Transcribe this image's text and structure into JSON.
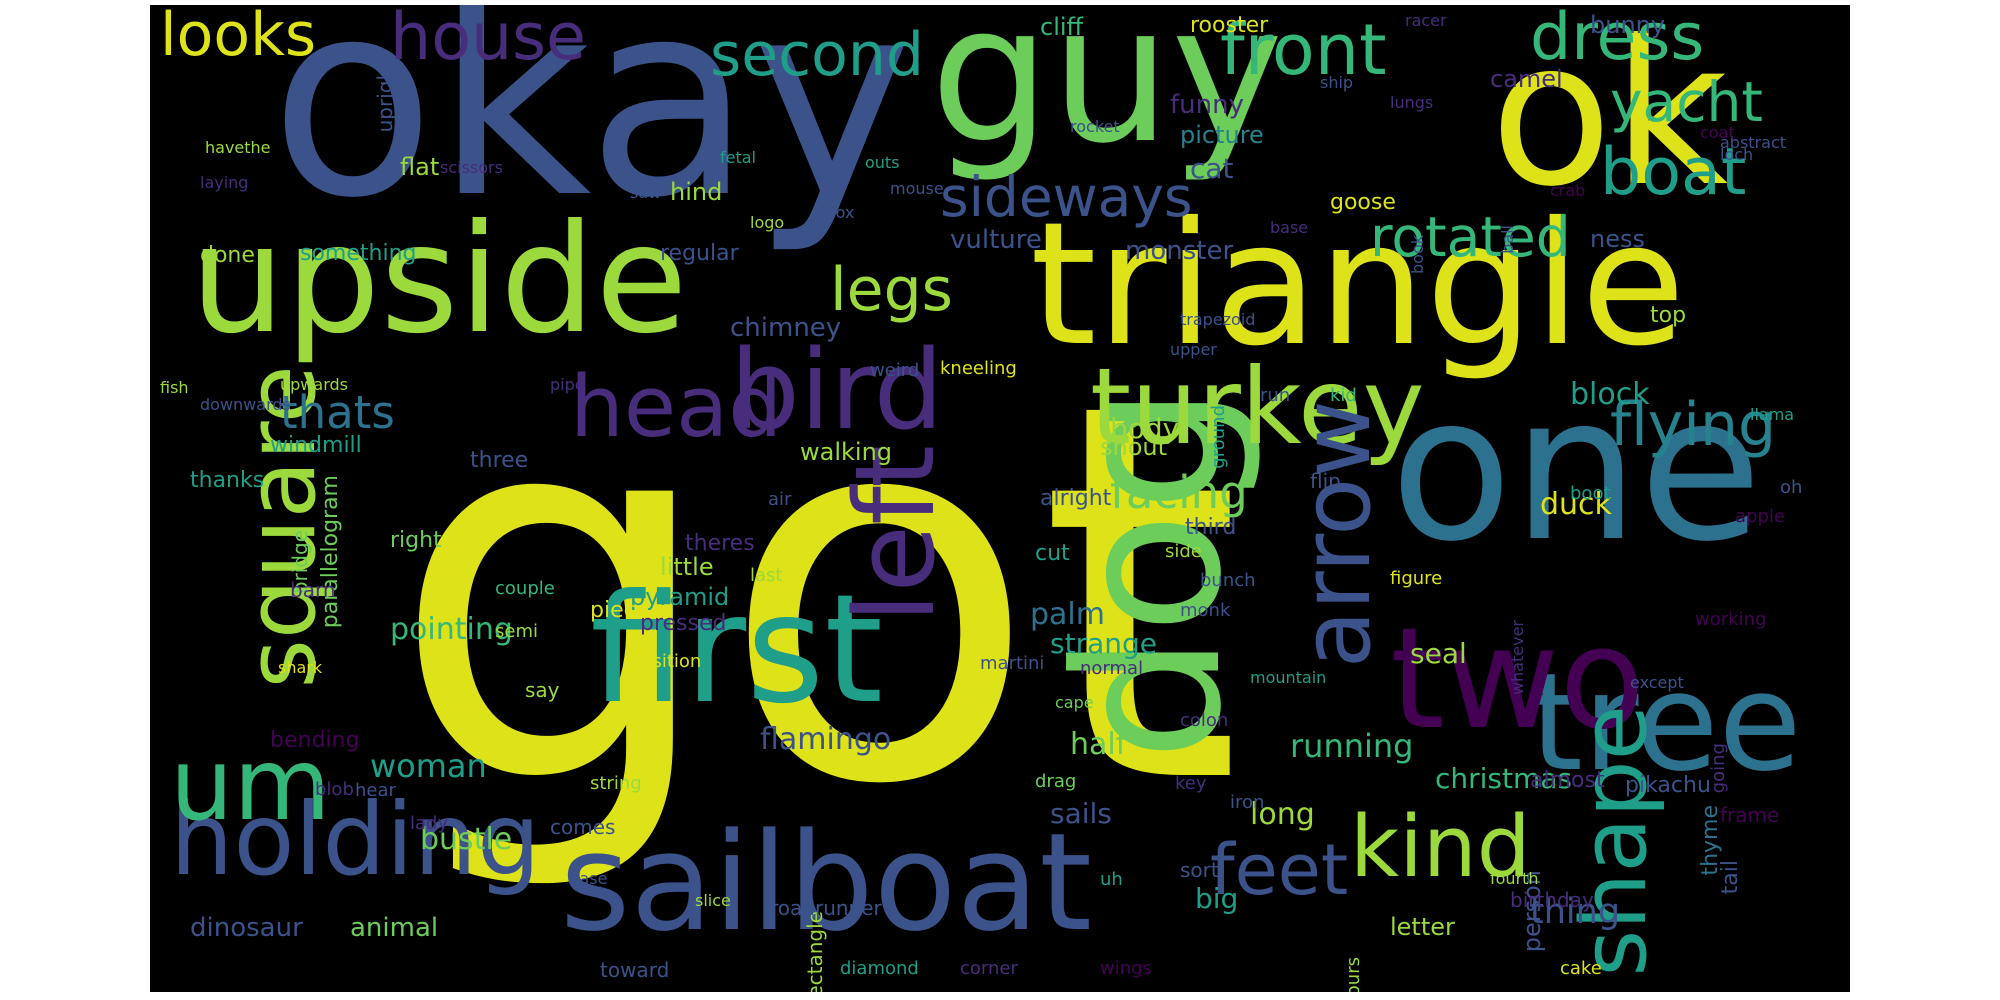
{
  "palette": {
    "yellow": "#dde318",
    "lime": "#9bd93c",
    "green": "#6ccd5a",
    "teal": "#1f9e89",
    "blue": "#2c728e",
    "slate": "#3b528b",
    "indigo": "#472d7b",
    "purple": "#440154",
    "cyan": "#26828e",
    "aqua": "#35b779"
  },
  "words": [
    {
      "text": "got",
      "color": "yellow"
    },
    {
      "text": "okay",
      "color": "slate"
    },
    {
      "text": "ok",
      "color": "yellow"
    },
    {
      "text": "guy",
      "color": "green"
    },
    {
      "text": "triangle",
      "color": "yellow"
    },
    {
      "text": "upside",
      "color": "lime"
    },
    {
      "text": "one",
      "color": "blue"
    },
    {
      "text": "first",
      "color": "teal"
    },
    {
      "text": "sailboat",
      "color": "slate"
    },
    {
      "text": "tree",
      "color": "blue"
    },
    {
      "text": "dog",
      "color": "green"
    },
    {
      "text": "two",
      "color": "purple"
    },
    {
      "text": "turkey",
      "color": "lime"
    },
    {
      "text": "holding",
      "color": "slate"
    },
    {
      "text": "bird",
      "color": "indigo"
    },
    {
      "text": "head",
      "color": "indigo"
    },
    {
      "text": "um",
      "color": "aqua"
    },
    {
      "text": "square",
      "color": "lime"
    },
    {
      "text": "left",
      "color": "indigo"
    },
    {
      "text": "arrow",
      "color": "slate"
    },
    {
      "text": "shape",
      "color": "teal"
    },
    {
      "text": "kind",
      "color": "lime"
    },
    {
      "text": "feet",
      "color": "slate"
    },
    {
      "text": "looks",
      "color": "yellow"
    },
    {
      "text": "house",
      "color": "indigo"
    },
    {
      "text": "second",
      "color": "teal"
    },
    {
      "text": "front",
      "color": "aqua"
    },
    {
      "text": "dress",
      "color": "aqua"
    },
    {
      "text": "yacht",
      "color": "aqua"
    },
    {
      "text": "boat",
      "color": "teal"
    },
    {
      "text": "sideways",
      "color": "slate"
    },
    {
      "text": "rotated",
      "color": "aqua"
    },
    {
      "text": "legs",
      "color": "lime"
    },
    {
      "text": "flying",
      "color": "cyan"
    },
    {
      "text": "facing",
      "color": "green"
    },
    {
      "text": "thats",
      "color": "blue"
    },
    {
      "text": "woman",
      "color": "teal"
    },
    {
      "text": "flamingo",
      "color": "slate"
    },
    {
      "text": "running",
      "color": "aqua"
    },
    {
      "text": "christmas",
      "color": "aqua"
    },
    {
      "text": "thing",
      "color": "slate"
    },
    {
      "text": "duck",
      "color": "yellow"
    },
    {
      "text": "block",
      "color": "teal"
    },
    {
      "text": "palm",
      "color": "blue"
    },
    {
      "text": "half",
      "color": "green"
    },
    {
      "text": "bustle",
      "color": "green"
    },
    {
      "text": "long",
      "color": "lime"
    },
    {
      "text": "big",
      "color": "teal"
    },
    {
      "text": "sails",
      "color": "slate"
    },
    {
      "text": "dinosaur",
      "color": "slate"
    },
    {
      "text": "animal",
      "color": "green"
    },
    {
      "text": "letter",
      "color": "lime"
    },
    {
      "text": "person",
      "color": "slate"
    },
    {
      "text": "strange",
      "color": "teal"
    },
    {
      "text": "pointing",
      "color": "aqua"
    },
    {
      "text": "windmill",
      "color": "teal"
    },
    {
      "text": "chimney",
      "color": "slate"
    },
    {
      "text": "walking",
      "color": "lime"
    },
    {
      "text": "body",
      "color": "lime"
    },
    {
      "text": "snout",
      "color": "lime"
    },
    {
      "text": "seal",
      "color": "lime"
    },
    {
      "text": "monster",
      "color": "slate"
    },
    {
      "text": "vulture",
      "color": "slate"
    },
    {
      "text": "cat",
      "color": "slate"
    },
    {
      "text": "funny",
      "color": "indigo"
    },
    {
      "text": "picture",
      "color": "cyan"
    },
    {
      "text": "bunny",
      "color": "slate"
    },
    {
      "text": "cliff",
      "color": "aqua"
    },
    {
      "text": "rooster",
      "color": "yellow"
    },
    {
      "text": "camel",
      "color": "indigo"
    },
    {
      "text": "goose",
      "color": "yellow"
    },
    {
      "text": "ness",
      "color": "slate"
    },
    {
      "text": "top",
      "color": "lime"
    },
    {
      "text": "hind",
      "color": "lime"
    },
    {
      "text": "flat",
      "color": "lime"
    },
    {
      "text": "something",
      "color": "teal"
    },
    {
      "text": "done",
      "color": "lime"
    },
    {
      "text": "regular",
      "color": "slate"
    },
    {
      "text": "upright",
      "color": "slate"
    },
    {
      "text": "thanks",
      "color": "teal"
    },
    {
      "text": "three",
      "color": "slate"
    },
    {
      "text": "right",
      "color": "green"
    },
    {
      "text": "theres",
      "color": "indigo"
    },
    {
      "text": "little",
      "color": "lime"
    },
    {
      "text": "pyramid",
      "color": "teal"
    },
    {
      "text": "piece",
      "color": "yellow"
    },
    {
      "text": "pressed",
      "color": "indigo"
    },
    {
      "text": "position",
      "color": "yellow"
    },
    {
      "text": "parallelogram",
      "color": "green"
    },
    {
      "text": "bridge",
      "color": "green"
    },
    {
      "text": "barn",
      "color": "indigo"
    },
    {
      "text": "bending",
      "color": "purple"
    },
    {
      "text": "say",
      "color": "lime"
    },
    {
      "text": "alright",
      "color": "slate"
    },
    {
      "text": "cut",
      "color": "teal"
    },
    {
      "text": "third",
      "color": "slate"
    },
    {
      "text": "flip",
      "color": "slate"
    },
    {
      "text": "figure",
      "color": "yellow"
    },
    {
      "text": "bunch",
      "color": "slate"
    },
    {
      "text": "side",
      "color": "lime"
    },
    {
      "text": "monk",
      "color": "slate"
    },
    {
      "text": "last",
      "color": "lime"
    },
    {
      "text": "air",
      "color": "slate"
    },
    {
      "text": "couple",
      "color": "aqua"
    },
    {
      "text": "semi",
      "color": "lime"
    },
    {
      "text": "shark",
      "color": "yellow"
    },
    {
      "text": "apple",
      "color": "purple"
    },
    {
      "text": "oh",
      "color": "slate"
    },
    {
      "text": "boot",
      "color": "teal"
    },
    {
      "text": "working",
      "color": "purple"
    },
    {
      "text": "whatever",
      "color": "indigo"
    },
    {
      "text": "except",
      "color": "slate"
    },
    {
      "text": "mountain",
      "color": "teal"
    },
    {
      "text": "cape",
      "color": "green"
    },
    {
      "text": "colon",
      "color": "indigo"
    },
    {
      "text": "going",
      "color": "indigo"
    },
    {
      "text": "pikachu",
      "color": "slate"
    },
    {
      "text": "almost",
      "color": "indigo"
    },
    {
      "text": "iron",
      "color": "slate"
    },
    {
      "text": "key",
      "color": "indigo"
    },
    {
      "text": "drag",
      "color": "green"
    },
    {
      "text": "string",
      "color": "lime"
    },
    {
      "text": "comes",
      "color": "slate"
    },
    {
      "text": "lady",
      "color": "indigo"
    },
    {
      "text": "blob",
      "color": "indigo"
    },
    {
      "text": "hear",
      "color": "slate"
    },
    {
      "text": "frame",
      "color": "purple"
    },
    {
      "text": "tail",
      "color": "slate"
    },
    {
      "text": "thyme",
      "color": "blue"
    },
    {
      "text": "sort",
      "color": "slate"
    },
    {
      "text": "uh",
      "color": "teal"
    },
    {
      "text": "fourth",
      "color": "lime"
    },
    {
      "text": "birthday",
      "color": "indigo"
    },
    {
      "text": "vase",
      "color": "slate"
    },
    {
      "text": "slice",
      "color": "lime"
    },
    {
      "text": "rectangle",
      "color": "lime"
    },
    {
      "text": "roadrunner",
      "color": "slate"
    },
    {
      "text": "toward",
      "color": "slate"
    },
    {
      "text": "diamond",
      "color": "teal"
    },
    {
      "text": "corner",
      "color": "indigo"
    },
    {
      "text": "wings",
      "color": "purple"
    },
    {
      "text": "fours",
      "color": "lime"
    },
    {
      "text": "cake",
      "color": "yellow"
    },
    {
      "text": "martini",
      "color": "slate"
    },
    {
      "text": "normal",
      "color": "indigo"
    },
    {
      "text": "ground",
      "color": "teal"
    },
    {
      "text": "run",
      "color": "slate"
    },
    {
      "text": "kid",
      "color": "aqua"
    },
    {
      "text": "llama",
      "color": "teal"
    },
    {
      "text": "kneeling",
      "color": "yellow"
    },
    {
      "text": "weird",
      "color": "slate"
    },
    {
      "text": "upper",
      "color": "slate"
    },
    {
      "text": "trapezoid",
      "color": "slate"
    },
    {
      "text": "upwards",
      "color": "lime"
    },
    {
      "text": "pipe",
      "color": "indigo"
    },
    {
      "text": "fish",
      "color": "lime"
    },
    {
      "text": "downwards",
      "color": "slate"
    },
    {
      "text": "crab",
      "color": "purple"
    },
    {
      "text": "ball",
      "color": "slate"
    },
    {
      "text": "base",
      "color": "indigo"
    },
    {
      "text": "book",
      "color": "slate"
    },
    {
      "text": "logo",
      "color": "lime"
    },
    {
      "text": "saw",
      "color": "slate"
    },
    {
      "text": "fetal",
      "color": "teal"
    },
    {
      "text": "fox",
      "color": "slate"
    },
    {
      "text": "mouse",
      "color": "slate"
    },
    {
      "text": "outs",
      "color": "teal"
    },
    {
      "text": "rocket",
      "color": "slate"
    },
    {
      "text": "laying",
      "color": "indigo"
    },
    {
      "text": "havethe",
      "color": "lime"
    },
    {
      "text": "scissors",
      "color": "indigo"
    },
    {
      "text": "ship",
      "color": "slate"
    },
    {
      "text": "racer",
      "color": "indigo"
    },
    {
      "text": "lungs",
      "color": "indigo"
    },
    {
      "text": "abstract",
      "color": "slate"
    },
    {
      "text": "coat",
      "color": "purple"
    },
    {
      "text": "loch",
      "color": "slate"
    }
  ]
}
